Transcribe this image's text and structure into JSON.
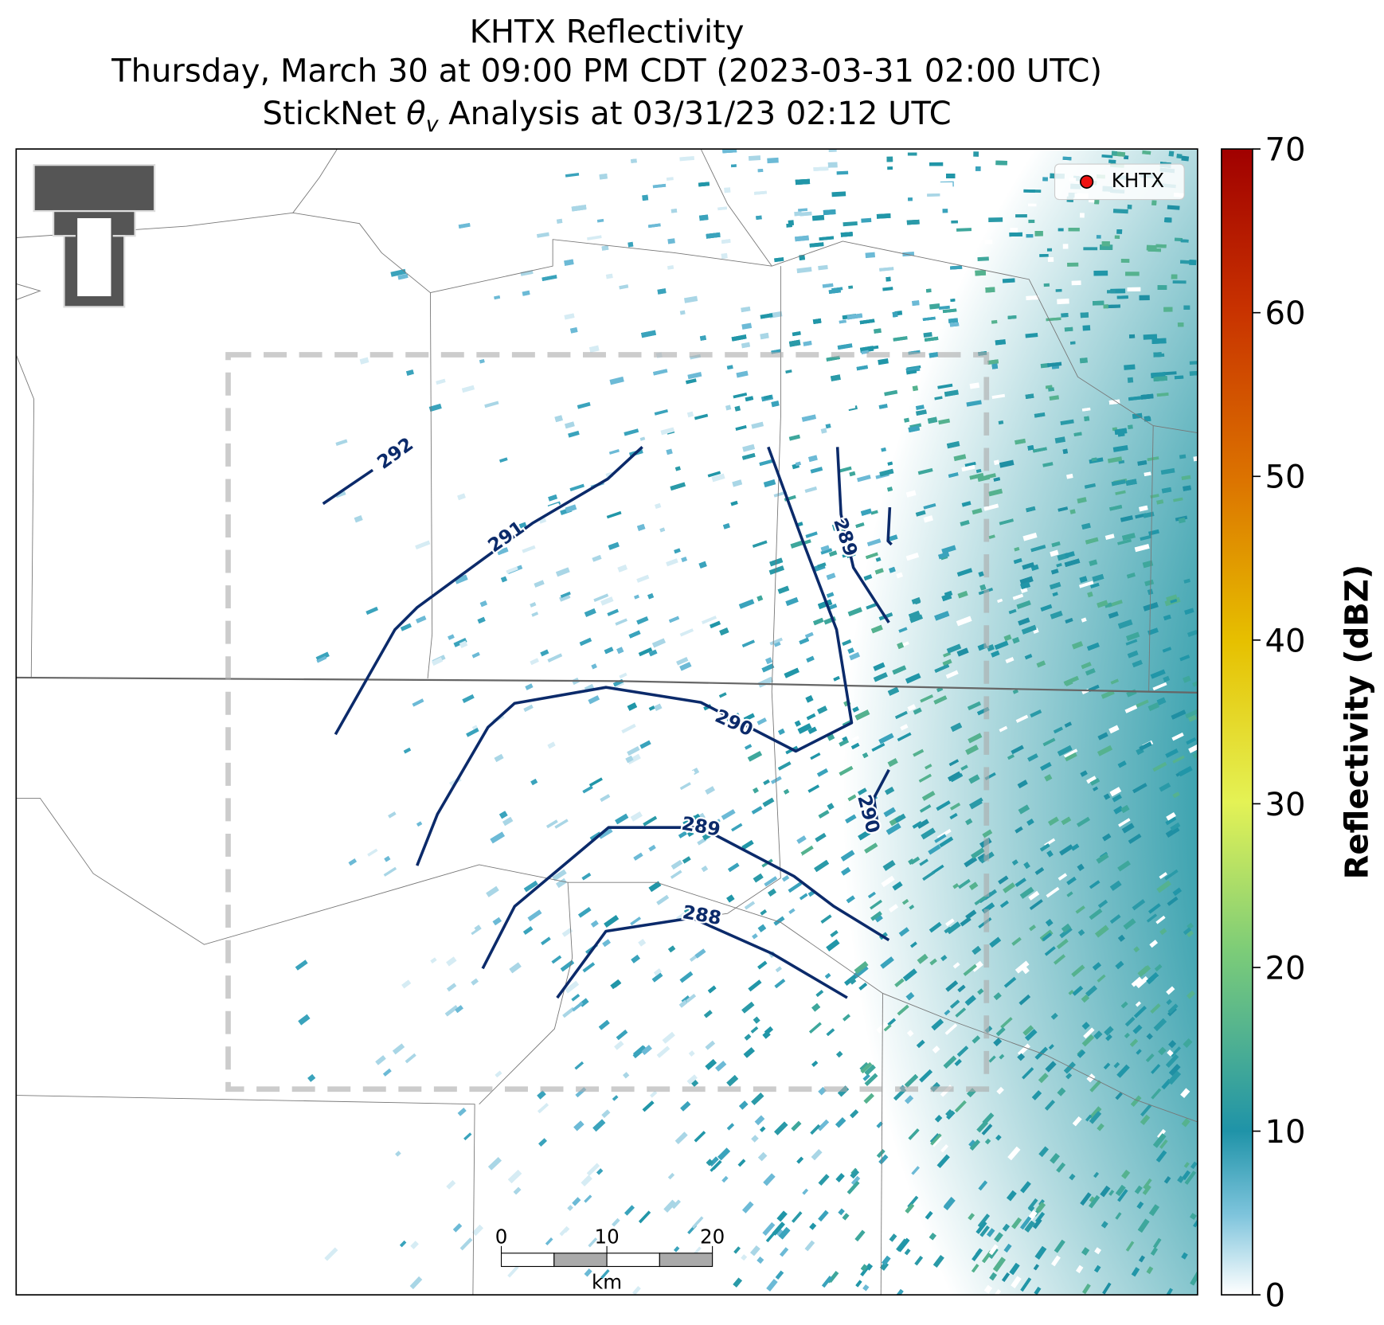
{
  "title": [
    "KHTX Reflectivity",
    "Thursday, March 30 at 09:00 PM CDT (2023-03-31 02:00 UTC)"
  ],
  "subtitle": {
    "before": "StickNet ",
    "symbol": "θ",
    "subscript": "v",
    "after": " Analysis at 03/31/23 02:12 UTC"
  },
  "legend": "KHTX",
  "colorbar": {
    "label": "Reflectivity (dBZ)",
    "lim": [
      0,
      70
    ],
    "ticks": [
      0,
      10,
      20,
      30,
      40,
      50,
      60,
      70
    ]
  },
  "contour_labels": [
    "292",
    "291",
    "290",
    "289",
    "288",
    "289",
    "290"
  ],
  "scale_bar": {
    "ticks": [
      0,
      10,
      20
    ],
    "unit": "km"
  }
}
